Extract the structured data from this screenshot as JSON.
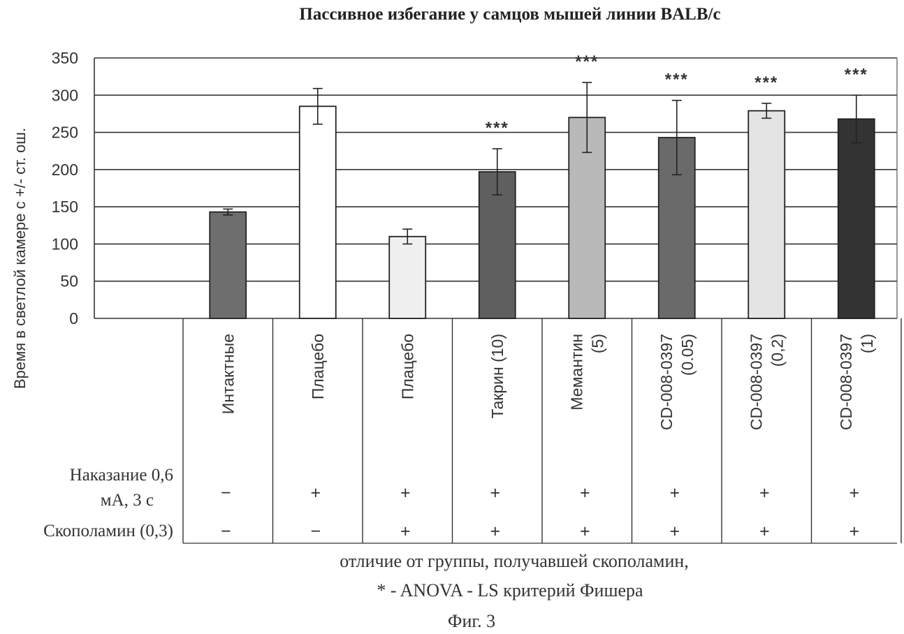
{
  "chart_data": {
    "type": "bar",
    "title": "Пассивное избегание у самцов мышей линии BALB/c",
    "ylabel": "Время в светлой камере с +/- ст. ош.",
    "ylim": [
      0,
      350
    ],
    "yticks": [
      "0",
      "50",
      "100",
      "150",
      "200",
      "250",
      "300",
      "350"
    ],
    "grid": true,
    "categories": [
      [
        "Интактные"
      ],
      [
        "Плацебо"
      ],
      [
        "Плацебо"
      ],
      [
        "Такрин (10)"
      ],
      [
        "Мемантин",
        "(5)"
      ],
      [
        "CD-008-0397",
        "(0.05)"
      ],
      [
        "CD-008-0397",
        "(0,2)"
      ],
      [
        "CD-008-0397",
        "(1)"
      ]
    ],
    "values": [
      143,
      285,
      110,
      197,
      270,
      243,
      279,
      268
    ],
    "errors": [
      4,
      24,
      10,
      31,
      47,
      50,
      10,
      32
    ],
    "bar_colors": [
      "#6e6e6e",
      "#ffffff",
      "#f0f0f0",
      "#5f5f5f",
      "#b9b9b9",
      "#6a6a6a",
      "#e4e4e4",
      "#333333"
    ],
    "significance": [
      "",
      "",
      "",
      "***",
      "***",
      "***",
      "***",
      "***"
    ]
  },
  "table": {
    "rows": [
      {
        "label_lines": [
          "Наказание 0,6",
          "мА, 3 с"
        ],
        "signs": [
          "−",
          "+",
          "+",
          "+",
          "+",
          "+",
          "+",
          "+"
        ]
      },
      {
        "label_lines": [
          "Скополамин (0,3)"
        ],
        "signs": [
          "−",
          "−",
          "+",
          "+",
          "+",
          "+",
          "+",
          "+"
        ]
      }
    ]
  },
  "footnote": {
    "line1": "отличие от группы, получавшей скополамин,",
    "line2": "* - ANOVA - LS критерий Фишера",
    "caption": "Фиг. 3"
  }
}
